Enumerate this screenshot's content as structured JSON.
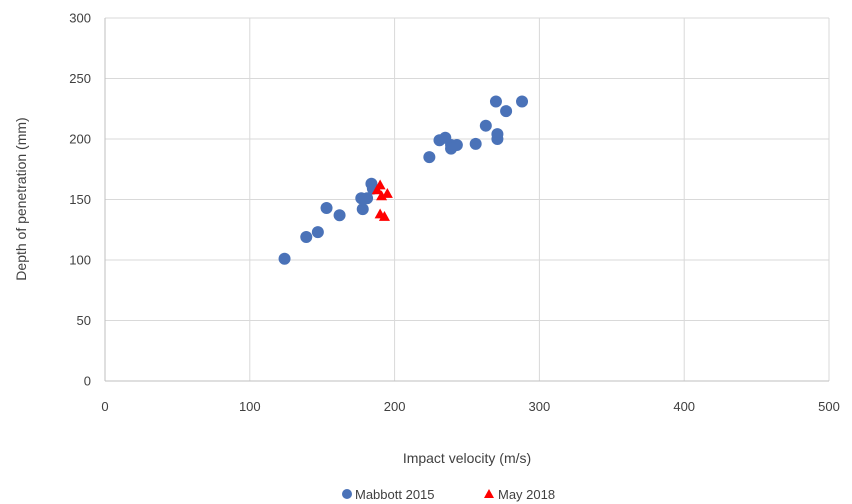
{
  "chart_data": {
    "type": "scatter",
    "title": "",
    "xlabel": "Impact velocity (m/s)",
    "ylabel": "Depth of penetration (mm)",
    "xlim": [
      0,
      500
    ],
    "ylim": [
      0,
      300
    ],
    "xticks": [
      0,
      100,
      200,
      300,
      400,
      500
    ],
    "yticks": [
      0,
      50,
      100,
      150,
      200,
      250,
      300
    ],
    "xtick_labels": [
      "0",
      "100",
      "200",
      "300",
      "400",
      "500"
    ],
    "ytick_labels": [
      "0",
      "50",
      "100",
      "150",
      "200",
      "250",
      "300"
    ],
    "grid": true,
    "legend_position": "bottom",
    "series": [
      {
        "name": "Mabbott 2015",
        "marker": "circle",
        "color": "#4a72b8",
        "points": [
          [
            124,
            101
          ],
          [
            139,
            119
          ],
          [
            147,
            123
          ],
          [
            153,
            143
          ],
          [
            162,
            137
          ],
          [
            177,
            151
          ],
          [
            178,
            142
          ],
          [
            181,
            151
          ],
          [
            184,
            163
          ],
          [
            185,
            159
          ],
          [
            224,
            185
          ],
          [
            231,
            199
          ],
          [
            235,
            201
          ],
          [
            239,
            195
          ],
          [
            239,
            192
          ],
          [
            243,
            195
          ],
          [
            256,
            196
          ],
          [
            263,
            211
          ],
          [
            270,
            231
          ],
          [
            271,
            204
          ],
          [
            271,
            200
          ],
          [
            277,
            223
          ],
          [
            288,
            231
          ]
        ]
      },
      {
        "name": "May 2018",
        "marker": "triangle",
        "color": "#ff0000",
        "points": [
          [
            188,
            158
          ],
          [
            190,
            162
          ],
          [
            191,
            153
          ],
          [
            195,
            155
          ],
          [
            190,
            138
          ],
          [
            193,
            136
          ]
        ]
      }
    ]
  }
}
